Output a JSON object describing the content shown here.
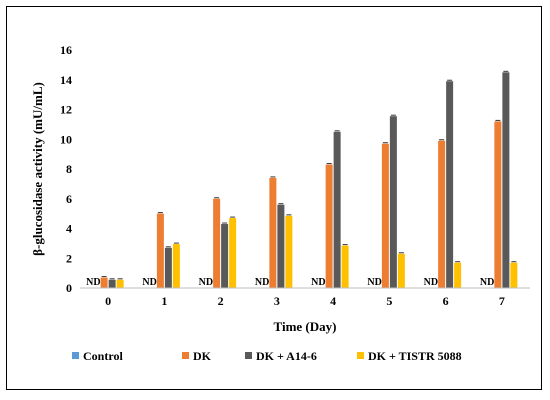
{
  "chart_data": {
    "type": "bar",
    "xlabel": "Time (Day)",
    "ylabel": "β-glucosidase activity (mU/mL)",
    "ylim": [
      0,
      16
    ],
    "yticks": [
      0,
      2,
      4,
      6,
      8,
      10,
      12,
      14,
      16
    ],
    "categories": [
      "0",
      "1",
      "2",
      "3",
      "4",
      "5",
      "6",
      "7"
    ],
    "grid": false,
    "legend": "bottom",
    "not_detected_label": "ND",
    "series": [
      {
        "name": "Control",
        "color": "#5b9bd5",
        "values": [
          null,
          null,
          null,
          null,
          null,
          null,
          null,
          null
        ]
      },
      {
        "name": "DK",
        "color": "#ed7d31",
        "values": [
          0.7,
          5.0,
          6.0,
          7.4,
          8.3,
          9.7,
          9.9,
          11.2
        ]
      },
      {
        "name": "DK + A14-6",
        "color": "#595959",
        "values": [
          0.55,
          2.7,
          4.3,
          5.6,
          10.5,
          11.55,
          13.9,
          14.5
        ]
      },
      {
        "name": "DK + TISTR 5088",
        "color": "#ffc000",
        "values": [
          0.55,
          2.95,
          4.7,
          4.85,
          2.85,
          2.3,
          1.7,
          1.7
        ]
      }
    ]
  }
}
